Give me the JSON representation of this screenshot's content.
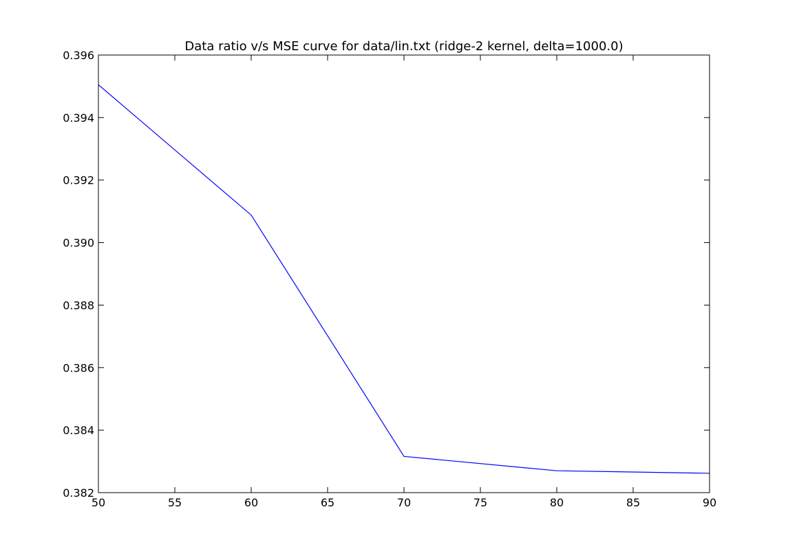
{
  "chart_data": {
    "type": "line",
    "title": "Data ratio v/s MSE curve for data/lin.txt (ridge-2 kernel, delta=1000.0)",
    "xlabel": "",
    "ylabel": "",
    "xlim": [
      50,
      90
    ],
    "ylim": [
      0.382,
      0.396
    ],
    "xticks": [
      50,
      55,
      60,
      65,
      70,
      75,
      80,
      85,
      90
    ],
    "xtick_labels": [
      "50",
      "55",
      "60",
      "65",
      "70",
      "75",
      "80",
      "85",
      "90"
    ],
    "yticks": [
      0.382,
      0.384,
      0.386,
      0.388,
      0.39,
      0.392,
      0.394,
      0.396
    ],
    "ytick_labels": [
      "0.382",
      "0.384",
      "0.386",
      "0.388",
      "0.390",
      "0.392",
      "0.394",
      "0.396"
    ],
    "grid": false,
    "series": [
      {
        "color": "#0000ff",
        "x": [
          50,
          60,
          70,
          80,
          90
        ],
        "y": [
          0.39505,
          0.39088,
          0.38316,
          0.3827,
          0.38262
        ]
      }
    ]
  }
}
